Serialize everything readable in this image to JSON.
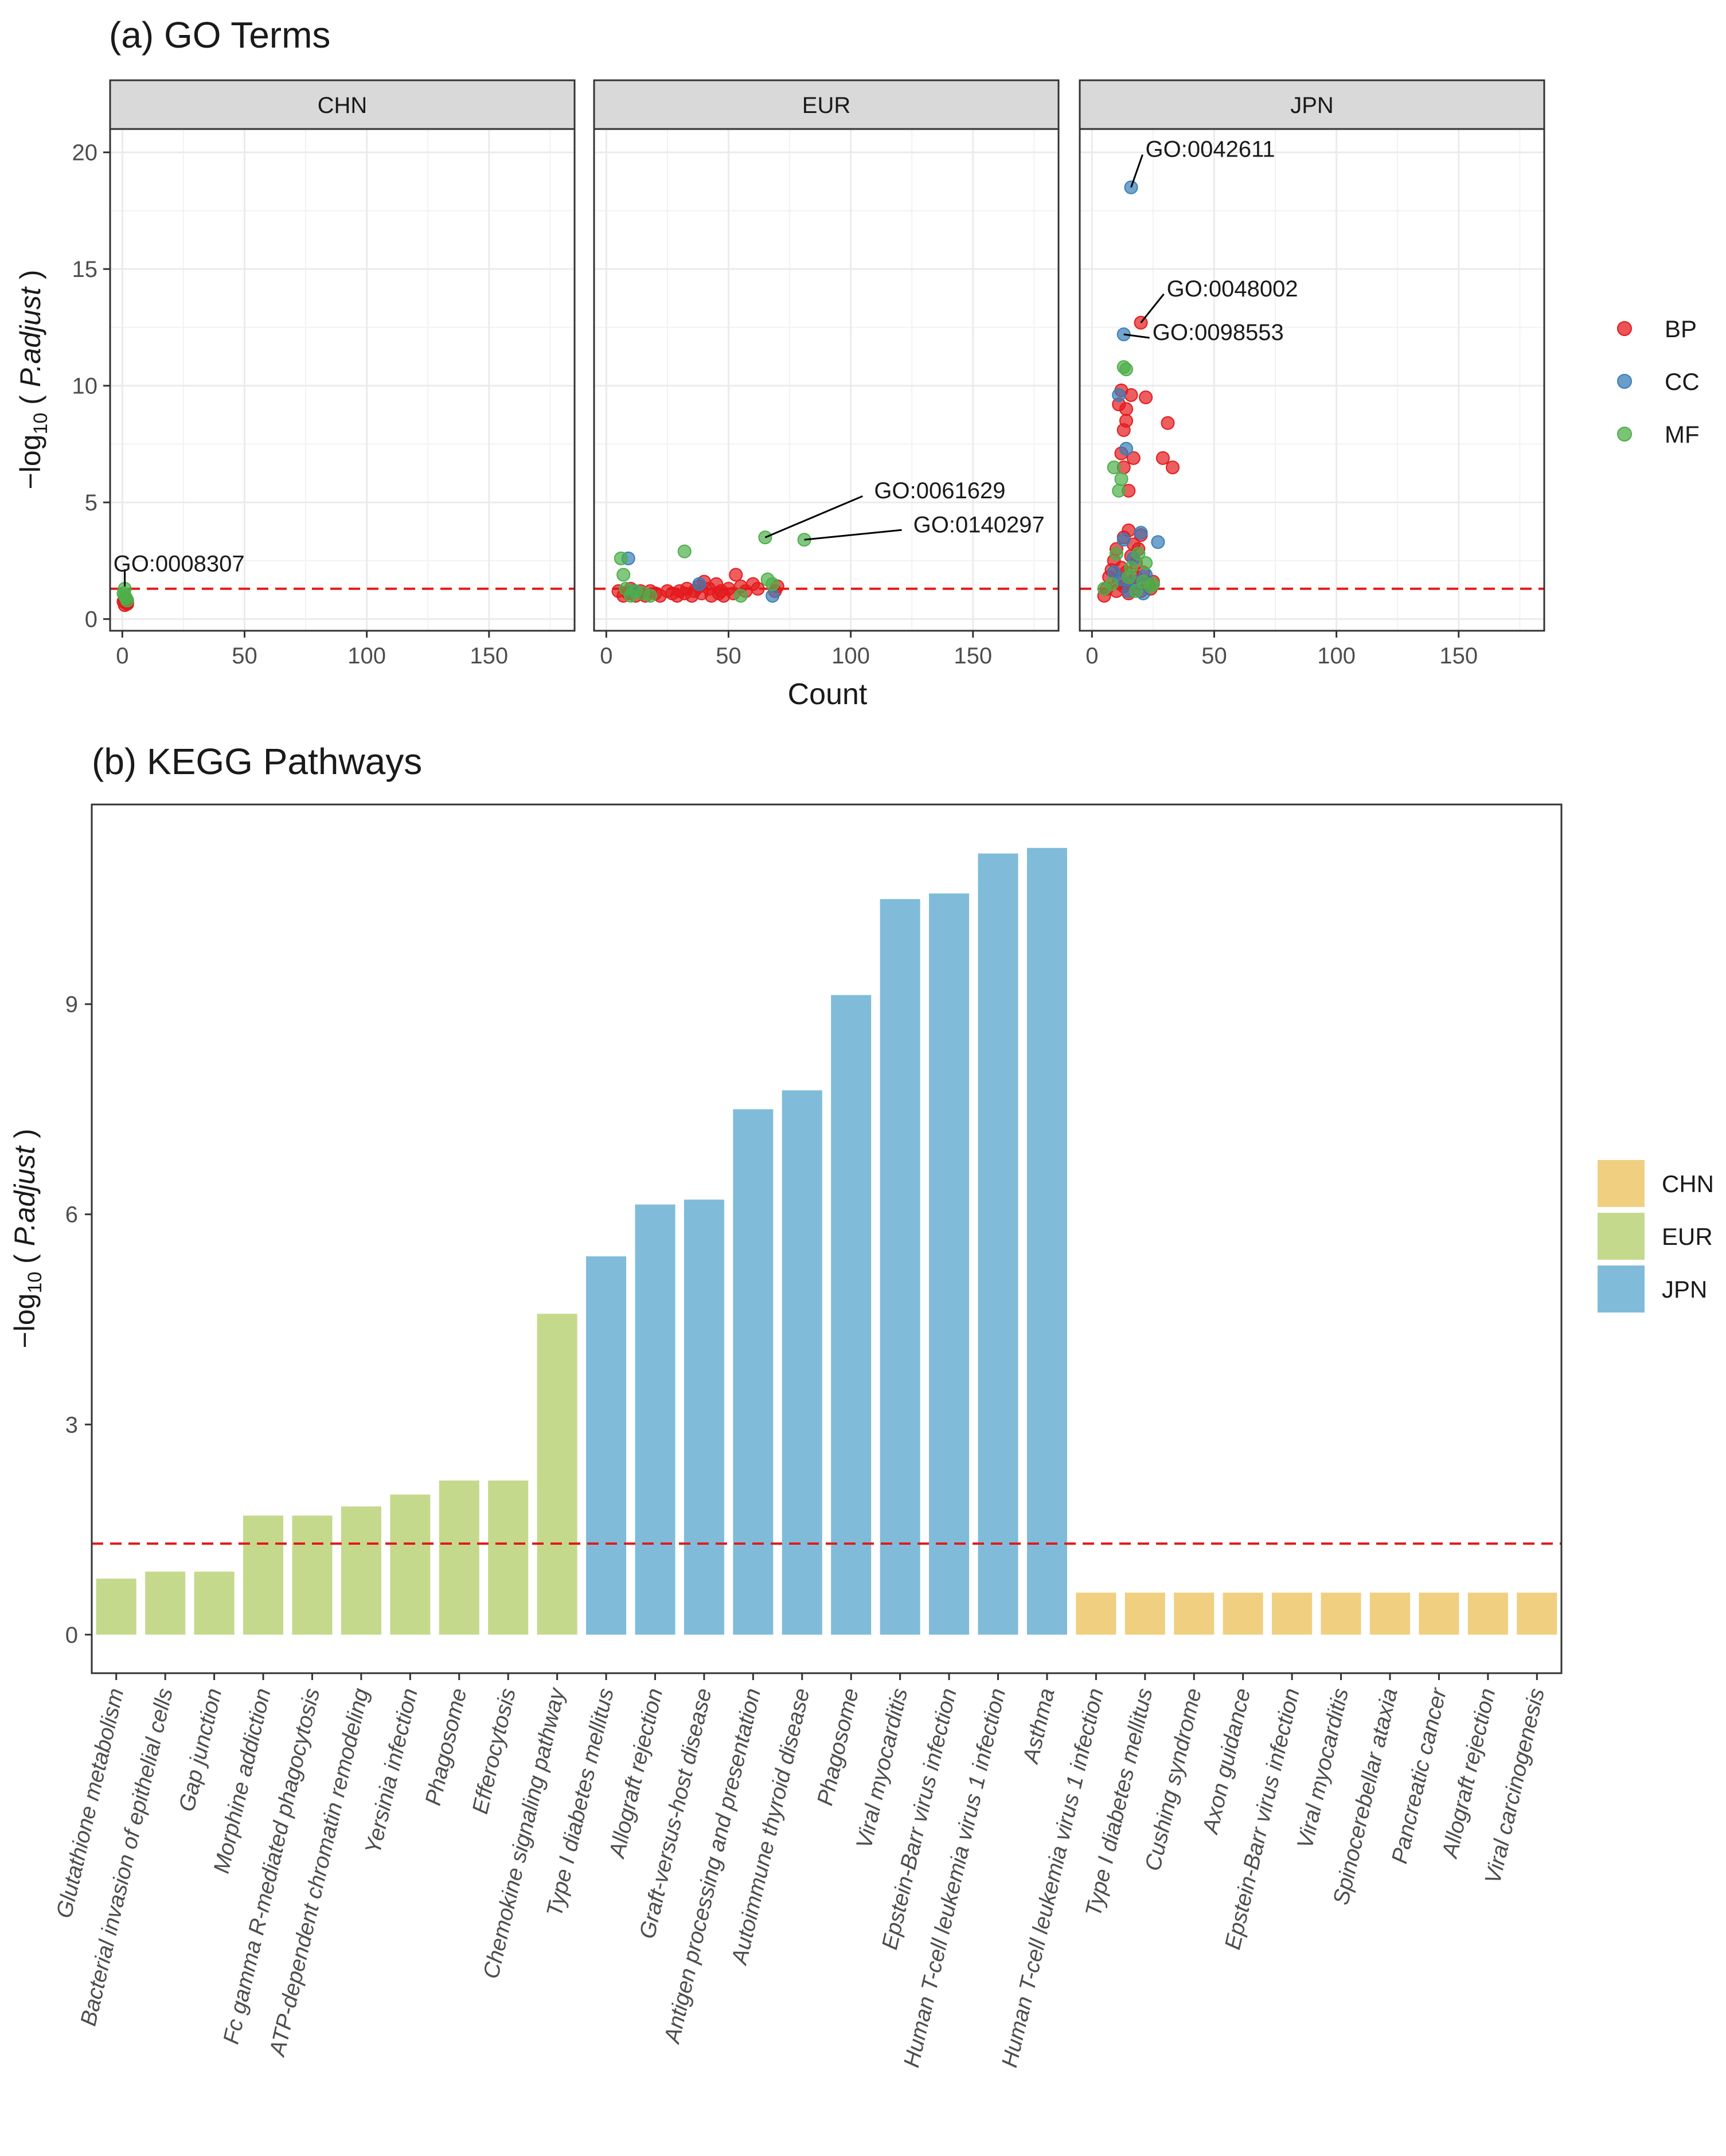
{
  "chart_data": [
    {
      "type": "scatter",
      "title": "(a) GO Terms",
      "xlabel": "Count",
      "ylabel": "-log10 ( P.adjust )",
      "xlim": [
        -5,
        185
      ],
      "ylim": [
        -0.5,
        21
      ],
      "xticks": [
        0,
        50,
        100,
        150
      ],
      "yticks": [
        0,
        5,
        10,
        15,
        20
      ],
      "threshold": 1.3,
      "legend": {
        "position": "right",
        "items": [
          {
            "label": "BP",
            "color": "#e41a1c"
          },
          {
            "label": "CC",
            "color": "#377eb8"
          },
          {
            "label": "MF",
            "color": "#4daf4a"
          }
        ]
      },
      "panels": [
        {
          "label": "CHN",
          "points": {
            "BP": [
              [
                1,
                0.6
              ],
              [
                2,
                0.7
              ],
              [
                1,
                0.8
              ],
              [
                2,
                0.65
              ],
              [
                0.5,
                0.75
              ],
              [
                1.5,
                0.9
              ]
            ],
            "CC": [],
            "MF": [
              [
                1,
                1.3
              ],
              [
                1,
                1.0
              ],
              [
                2,
                0.8
              ],
              [
                0.5,
                1.1
              ],
              [
                1.5,
                0.9
              ]
            ]
          },
          "annotations": [
            {
              "text": "GO:0008307",
              "x": 1,
              "y": 1.4
            }
          ]
        },
        {
          "label": "EUR",
          "points": {
            "BP": [
              [
                5,
                1.2
              ],
              [
                7,
                1.0
              ],
              [
                9,
                1.1
              ],
              [
                10,
                1.3
              ],
              [
                12,
                1.0
              ],
              [
                14,
                1.2
              ],
              [
                15,
                1.1
              ],
              [
                16,
                1.0
              ],
              [
                18,
                1.2
              ],
              [
                20,
                1.1
              ],
              [
                22,
                1.0
              ],
              [
                25,
                1.2
              ],
              [
                27,
                1.1
              ],
              [
                29,
                1.0
              ],
              [
                30,
                1.2
              ],
              [
                32,
                1.1
              ],
              [
                33,
                1.3
              ],
              [
                35,
                1.0
              ],
              [
                36,
                1.2
              ],
              [
                38,
                1.4
              ],
              [
                39,
                1.1
              ],
              [
                40,
                1.6
              ],
              [
                42,
                1.3
              ],
              [
                43,
                1.0
              ],
              [
                45,
                1.5
              ],
              [
                46,
                1.1
              ],
              [
                47,
                1.2
              ],
              [
                48,
                1.0
              ],
              [
                50,
                1.3
              ],
              [
                52,
                1.1
              ],
              [
                53,
                1.9
              ],
              [
                55,
                1.4
              ],
              [
                57,
                1.2
              ],
              [
                60,
                1.5
              ],
              [
                62,
                1.3
              ],
              [
                69,
                1.2
              ],
              [
                70,
                1.4
              ]
            ],
            "CC": [
              [
                9,
                2.6
              ],
              [
                11,
                1.2
              ],
              [
                38,
                1.5
              ],
              [
                68,
                1.0
              ]
            ],
            "MF": [
              [
                6,
                2.6
              ],
              [
                7,
                1.9
              ],
              [
                8,
                1.3
              ],
              [
                10,
                1.0
              ],
              [
                12,
                1.2
              ],
              [
                15,
                1.1
              ],
              [
                18,
                1.0
              ],
              [
                32,
                2.9
              ],
              [
                55,
                1.0
              ],
              [
                65,
                3.5
              ],
              [
                66,
                1.7
              ],
              [
                68,
                1.5
              ],
              [
                81,
                3.4
              ]
            ]
          },
          "annotations": [
            {
              "text": "GO:0061629",
              "x": 65,
              "y": 3.5
            },
            {
              "text": "GO:0140297",
              "x": 81,
              "y": 3.4
            }
          ]
        },
        {
          "label": "JPN",
          "points": {
            "BP": [
              [
                5,
                1.0
              ],
              [
                6,
                1.3
              ],
              [
                7,
                1.8
              ],
              [
                8,
                2.1
              ],
              [
                9,
                2.5
              ],
              [
                10,
                1.2
              ],
              [
                10,
                3.0
              ],
              [
                11,
                1.6
              ],
              [
                11,
                9.2
              ],
              [
                12,
                2.2
              ],
              [
                12,
                9.8
              ],
              [
                12,
                7.1
              ],
              [
                13,
                1.4
              ],
              [
                13,
                3.5
              ],
              [
                13,
                6.5
              ],
              [
                13,
                8.1
              ],
              [
                14,
                2.0
              ],
              [
                14,
                8.5
              ],
              [
                14,
                9.0
              ],
              [
                15,
                1.1
              ],
              [
                15,
                3.8
              ],
              [
                15,
                5.5
              ],
              [
                16,
                2.7
              ],
              [
                16,
                1.5
              ],
              [
                16,
                9.6
              ],
              [
                17,
                3.2
              ],
              [
                17,
                6.9
              ],
              [
                18,
                1.8
              ],
              [
                18,
                2.4
              ],
              [
                19,
                3.0
              ],
              [
                20,
                1.2
              ],
              [
                20,
                3.6
              ],
              [
                20,
                12.7
              ],
              [
                21,
                2.0
              ],
              [
                22,
                9.5
              ],
              [
                23,
                1.5
              ],
              [
                24,
                1.3
              ],
              [
                25,
                1.6
              ],
              [
                29,
                6.9
              ],
              [
                31,
                8.4
              ],
              [
                33,
                6.5
              ]
            ],
            "CC": [
              [
                9,
                2.0
              ],
              [
                11,
                9.6
              ],
              [
                12,
                1.7
              ],
              [
                13,
                12.2
              ],
              [
                13,
                3.4
              ],
              [
                14,
                7.3
              ],
              [
                15,
                1.2
              ],
              [
                16,
                18.5
              ],
              [
                17,
                2.6
              ],
              [
                18,
                1.6
              ],
              [
                20,
                3.7
              ],
              [
                21,
                1.1
              ],
              [
                22,
                1.9
              ],
              [
                27,
                3.3
              ]
            ],
            "MF": [
              [
                5,
                1.3
              ],
              [
                8,
                1.5
              ],
              [
                9,
                6.5
              ],
              [
                10,
                2.8
              ],
              [
                11,
                5.5
              ],
              [
                12,
                6.0
              ],
              [
                13,
                10.8
              ],
              [
                14,
                10.7
              ],
              [
                15,
                1.8
              ],
              [
                16,
                2.2
              ],
              [
                18,
                1.2
              ],
              [
                19,
                2.8
              ],
              [
                21,
                1.6
              ],
              [
                22,
                2.4
              ],
              [
                24,
                1.4
              ],
              [
                25,
                1.5
              ]
            ]
          },
          "annotations": [
            {
              "text": "GO:0042611",
              "x": 16,
              "y": 18.5
            },
            {
              "text": "GO:0048002",
              "x": 20,
              "y": 12.7
            },
            {
              "text": "GO:0098553",
              "x": 13,
              "y": 12.2
            }
          ]
        }
      ]
    },
    {
      "type": "bar",
      "title": "(b) KEGG Pathways",
      "xlabel": "",
      "ylabel": "-log10 ( P.adjust )",
      "ylim": [
        -0.55,
        11.85
      ],
      "yticks": [
        0,
        3,
        6,
        9
      ],
      "threshold": 1.3,
      "legend": {
        "position": "right",
        "items": [
          {
            "label": "CHN",
            "color": "#f0d080"
          },
          {
            "label": "EUR",
            "color": "#c5d98c"
          },
          {
            "label": "JPN",
            "color": "#80bcda"
          }
        ]
      },
      "categories": [
        "Glutathione metabolism",
        "Bacterial invasion of epithelial cells",
        "Gap junction",
        "Morphine addiction",
        "Fc gamma R-mediated phagocytosis",
        "ATP-dependent chromatin remodeling",
        "Yersinia infection",
        "Phagosome",
        "Efferocytosis",
        "Chemokine signaling pathway",
        "Type I diabetes mellitus",
        "Allograft rejection",
        "Graft-versus-host disease",
        "Antigen processing and presentation",
        "Autoimmune thyroid disease",
        "Phagosome",
        "Viral myocarditis",
        "Epstein-Barr virus infection",
        "Human T-cell leukemia virus 1 infection",
        "Asthma",
        "Human T-cell leukemia virus 1 infection",
        "Type I diabetes mellitus",
        "Cushing syndrome",
        "Axon guidance",
        "Epstein-Barr virus infection",
        "Viral myocarditis",
        "Spinocerebellar ataxia",
        "Pancreatic cancer",
        "Allograft rejection",
        "Viral carcinogenesis"
      ],
      "groups": [
        "EUR",
        "EUR",
        "EUR",
        "EUR",
        "EUR",
        "EUR",
        "EUR",
        "EUR",
        "EUR",
        "EUR",
        "JPN",
        "JPN",
        "JPN",
        "JPN",
        "JPN",
        "JPN",
        "JPN",
        "JPN",
        "JPN",
        "JPN",
        "CHN",
        "CHN",
        "CHN",
        "CHN",
        "CHN",
        "CHN",
        "CHN",
        "CHN",
        "CHN",
        "CHN"
      ],
      "values": [
        0.8,
        0.9,
        0.9,
        1.7,
        1.7,
        1.83,
        2.0,
        2.2,
        2.2,
        4.58,
        5.4,
        6.14,
        6.21,
        7.5,
        7.77,
        9.13,
        10.5,
        10.58,
        11.15,
        11.23,
        0.6,
        0.6,
        0.6,
        0.6,
        0.6,
        0.6,
        0.6,
        0.6,
        0.6,
        0.6
      ]
    }
  ]
}
